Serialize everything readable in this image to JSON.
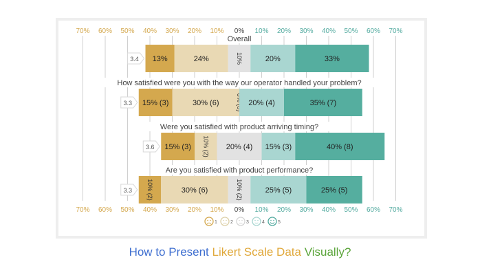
{
  "chart_data": {
    "type": "bar",
    "subtype": "diverging-stacked-likert",
    "axis": {
      "ticks_left": [
        "70%",
        "60%",
        "50%",
        "40%",
        "30%",
        "20%",
        "10%"
      ],
      "tick_zero": "0%",
      "ticks_right": [
        "10%",
        "20%",
        "30%",
        "40%",
        "50%",
        "60%",
        "70%"
      ],
      "range": [
        -70,
        70
      ],
      "grid": true
    },
    "legend": {
      "position": "bottom",
      "items": [
        {
          "label": "1",
          "icon": "very-sad-face-icon",
          "color": "#d4a84e"
        },
        {
          "label": "2",
          "icon": "sad-face-icon",
          "color": "#ddd0a8"
        },
        {
          "label": "3",
          "icon": "neutral-face-icon",
          "color": "#d4d4d4"
        },
        {
          "label": "4",
          "icon": "smile-face-icon",
          "color": "#a9d6d1"
        },
        {
          "label": "5",
          "icon": "happy-face-icon",
          "color": "#52aa9f"
        }
      ]
    },
    "colors": {
      "neg_strong": "#d4a84e",
      "neg": "#e9d9b4",
      "neutral": "#e2e2e2",
      "pos": "#a9d6d1",
      "pos_strong": "#55ae9f",
      "tick_negative": "#d4a84e",
      "tick_positive": "#52aa9f",
      "tick_zero": "#444444"
    },
    "rows": [
      {
        "question": "Overall",
        "mean": "3.4",
        "segments": [
          {
            "value": 13,
            "label": "13%",
            "vertical": false
          },
          {
            "value": 24,
            "label": "24%",
            "vertical": false
          },
          {
            "value": 10,
            "label": "10%",
            "vertical": true
          },
          {
            "value": 20,
            "label": "20%",
            "vertical": false
          },
          {
            "value": 33,
            "label": "33%",
            "vertical": false
          }
        ]
      },
      {
        "question": "How satisfied were you with the way our operator handled your problem?",
        "mean": "3.3",
        "segments": [
          {
            "value": 15,
            "label": "15% (3)",
            "vertical": false
          },
          {
            "value": 30,
            "label": "30% (6)",
            "vertical": false
          },
          {
            "value": 0,
            "label": "0% (0)",
            "vertical": true
          },
          {
            "value": 20,
            "label": "20% (4)",
            "vertical": false
          },
          {
            "value": 35,
            "label": "35% (7)",
            "vertical": false
          }
        ]
      },
      {
        "question": "Were you satisfied with product arriving timing?",
        "mean": "3.6",
        "segments": [
          {
            "value": 15,
            "label": "15% (3)",
            "vertical": false
          },
          {
            "value": 10,
            "label": "10% (2)",
            "vertical": true
          },
          {
            "value": 20,
            "label": "20% (4)",
            "vertical": false
          },
          {
            "value": 15,
            "label": "15% (3)",
            "vertical": false
          },
          {
            "value": 40,
            "label": "40% (8)",
            "vertical": false
          }
        ]
      },
      {
        "question": "Are you satisfied with product performance?",
        "mean": "3.3",
        "segments": [
          {
            "value": 10,
            "label": "10% (2)",
            "vertical": true
          },
          {
            "value": 30,
            "label": "30% (6)",
            "vertical": false
          },
          {
            "value": 10,
            "label": "10% (2)",
            "vertical": true
          },
          {
            "value": 25,
            "label": "25% (5)",
            "vertical": false
          },
          {
            "value": 25,
            "label": "25% (5)",
            "vertical": false
          }
        ]
      }
    ]
  },
  "caption": {
    "part1": "How to Present ",
    "part1_color": "#3f6fd0",
    "part2": "Likert Scale Data",
    "part2_color": "#e0a83a",
    "part3": " Visually?",
    "part3_color": "#5aa43a"
  }
}
